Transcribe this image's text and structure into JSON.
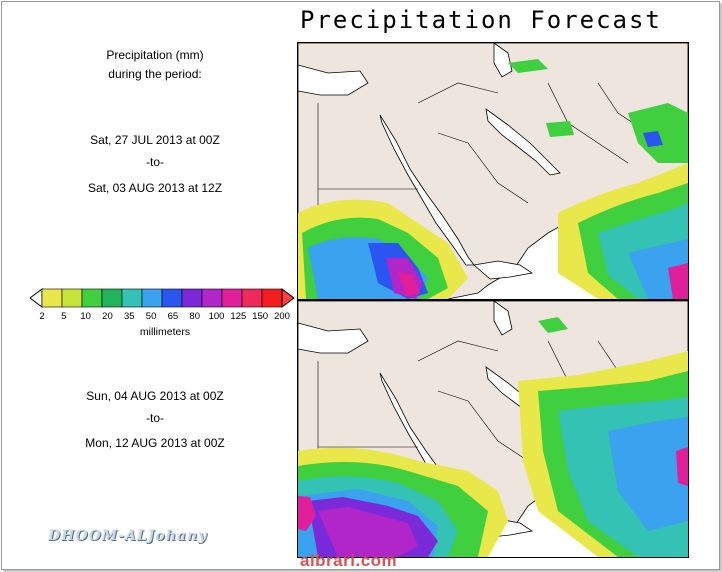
{
  "title": "Precipitation Forecast",
  "legend_title_line1": "Precipitation (mm)",
  "legend_title_line2": "during the period:",
  "period1": {
    "start": "Sat, 27 JUL 2013 at 00Z",
    "to": "-to-",
    "end": "Sat, 03 AUG 2013 at 12Z"
  },
  "period2": {
    "start": "Sun, 04 AUG 2013 at 00Z",
    "to": "-to-",
    "end": "Mon, 12 AUG 2013 at 00Z"
  },
  "colorbar": {
    "ticks": [
      "2",
      "5",
      "10",
      "20",
      "35",
      "50",
      "65",
      "80",
      "100",
      "125",
      "150",
      "200"
    ],
    "unit": "millimeters",
    "colors": [
      "#e8e84a",
      "#c8e33a",
      "#3fcf3f",
      "#22b45a",
      "#33c2b4",
      "#3aa2ee",
      "#2a55f0",
      "#7a2ad8",
      "#b026c8",
      "#e0209a",
      "#ef2a5a",
      "#f41e1e"
    ]
  },
  "watermark": "DHOOM-ALJohany",
  "site": "albrari.com",
  "map_colors": {
    "land": "#efe5df",
    "sea": "#ffffff",
    "border": "#000000"
  }
}
